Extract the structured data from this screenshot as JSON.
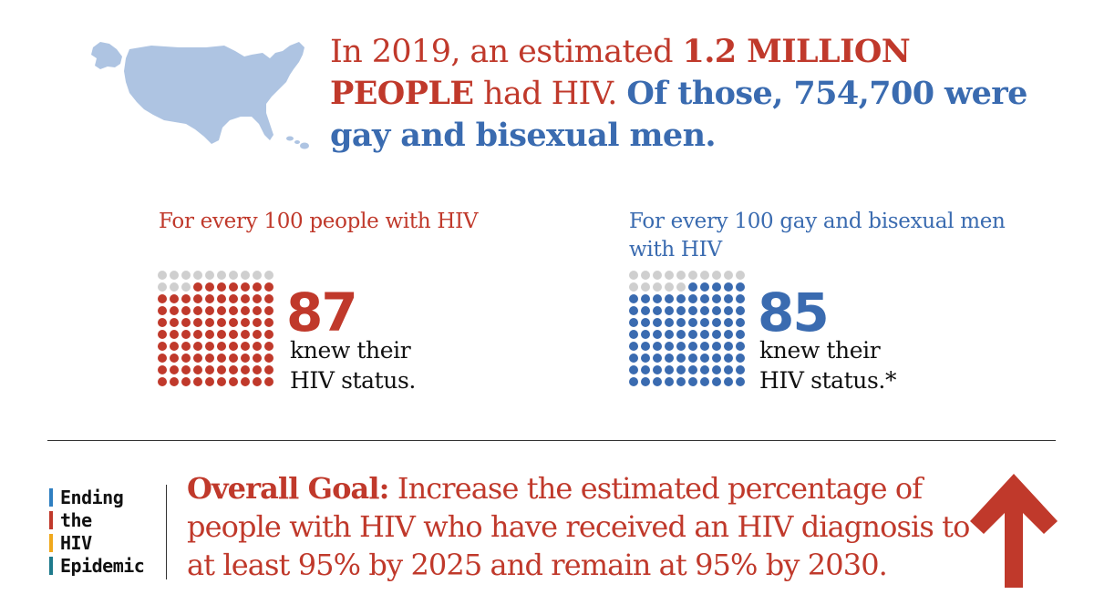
{
  "headline": {
    "part1": "In 2019, an estimated ",
    "part2_bold": "1.2 MILLION PEOPLE",
    "part3": " had HIV.  ",
    "part4_blue": "Of those, 754,700 were gay and bisexual men."
  },
  "panels": [
    {
      "label": "For every 100 people with HIV",
      "number": "87",
      "knew_line1": "knew their",
      "knew_line2": "HIV status.",
      "filled": 87,
      "total": 100,
      "color": "#c0392b"
    },
    {
      "label": "For every 100 gay and bisexual men with HIV",
      "number": "85",
      "knew_line1": "knew their",
      "knew_line2": "HIV status.*",
      "filled": 85,
      "total": 100,
      "color": "#3a6bb0"
    }
  ],
  "empty_dot_color": "#cfcfcf",
  "ehe_logo": {
    "lines": [
      {
        "text": "Ending",
        "bar_color": "#2f7fc1"
      },
      {
        "text": "the",
        "bar_color": "#c0392b"
      },
      {
        "text": "HIV",
        "bar_color": "#f0a81c"
      },
      {
        "text": "Epidemic",
        "bar_color": "#1e7a8c"
      }
    ]
  },
  "goal": {
    "bold": "Overall Goal:",
    "text": " Increase the estimated percentage of people with HIV who have received an HIV diagnosis to at least 95% by 2025 and remain at 95% by 2030."
  },
  "icons": {
    "map": "us-map-icon",
    "arrow": "up-arrow-icon"
  }
}
